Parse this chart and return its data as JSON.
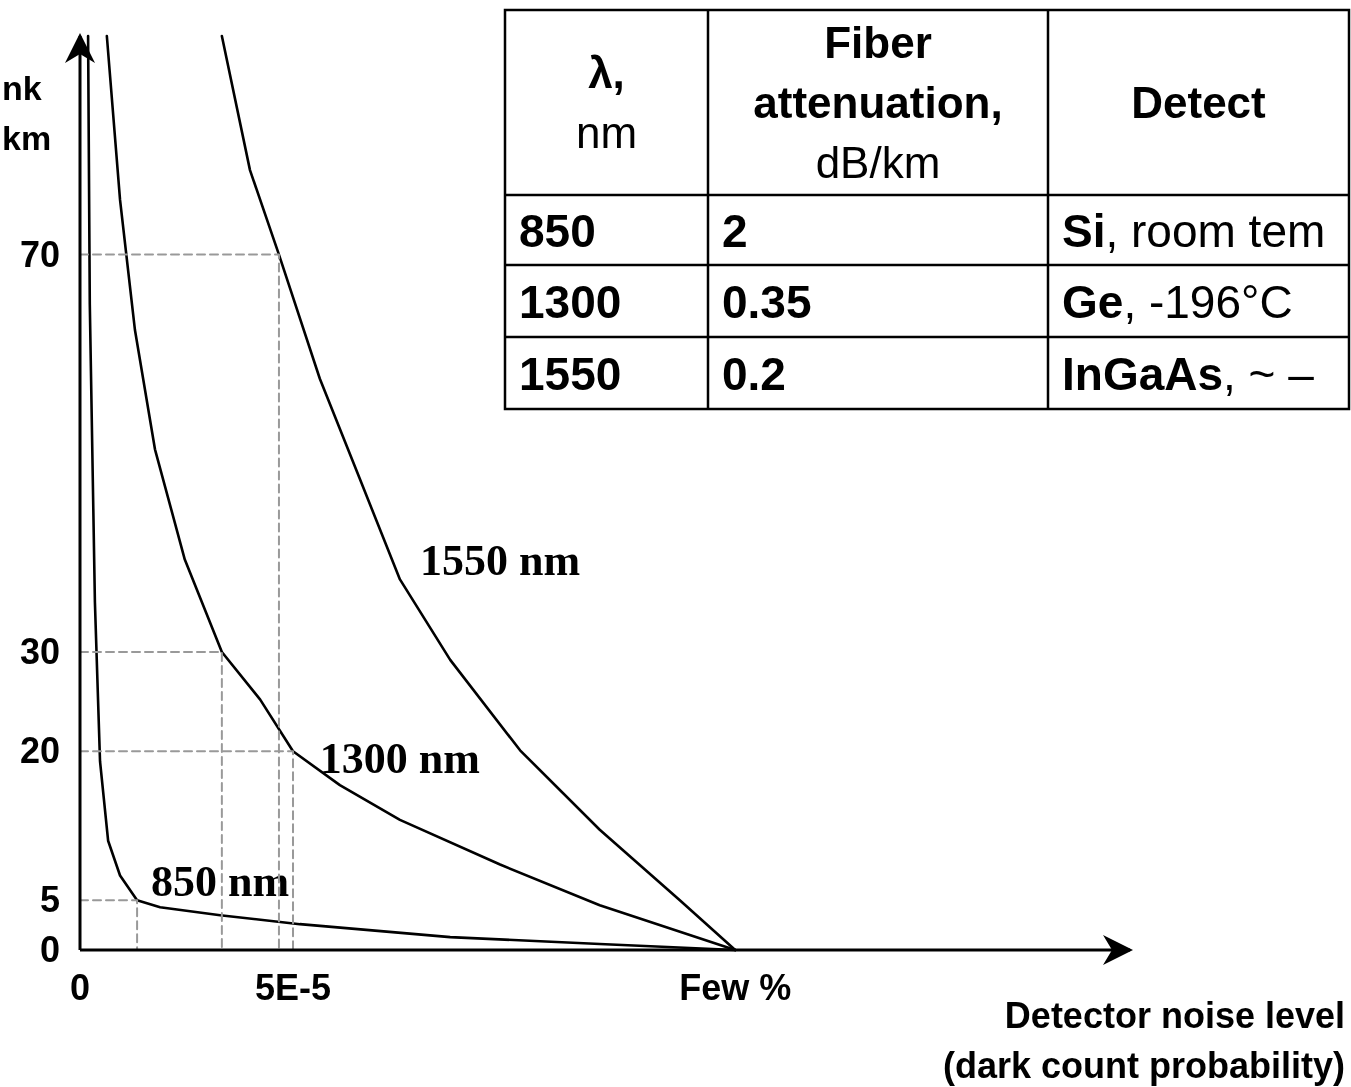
{
  "chart_data": [
    {
      "type": "line",
      "xlabel": "Detector noise level (dark count probability)",
      "ylabel": "nk km",
      "xlim": [
        0,
        0.000246
      ],
      "ylim": [
        0,
        92
      ],
      "xticks": [
        0,
        {
          "value": 5e-05,
          "label": "5E-5"
        },
        {
          "value": 0.0001538,
          "label": "Few %"
        }
      ],
      "yticks": [
        0,
        5,
        20,
        30,
        70
      ],
      "grid": false,
      "marker": "none",
      "series": [
        {
          "name": "850 nm",
          "color": "#000000",
          "x": [
            1.9e-06,
            2.3e-06,
            3.5e-06,
            4.7e-06,
            6.6e-06,
            9.4e-06,
            1.34e-05,
            1.88e-05,
            3.29e-05,
            5.16e-05,
            8.69e-05,
            0.000122,
            0.0001538
          ],
          "values": [
            92,
            65,
            35,
            19,
            11,
            7.5,
            5,
            4.3,
            3.5,
            2.6,
            1.3,
            0.6,
            0
          ]
        },
        {
          "name": "1300 nm",
          "color": "#000000",
          "x": [
            6.3e-06,
            9.4e-06,
            1.29e-05,
            1.76e-05,
            2.46e-05,
            3.33e-05,
            4.23e-05,
            5e-05,
            6.1e-05,
            7.51e-05,
            9.86e-05,
            0.000122,
            0.0001538
          ],
          "values": [
            92,
            75.5,
            62.4,
            50.4,
            39.3,
            30,
            25.2,
            20,
            16.6,
            13.1,
            8.6,
            4.5,
            0
          ]
        },
        {
          "name": "1550 nm",
          "color": "#000000",
          "x": [
            3.33e-05,
            3.99e-05,
            4.67e-05,
            5.63e-05,
            6.57e-05,
            7.51e-05,
            8.69e-05,
            0.0001033,
            0.000122,
            0.0001408,
            0.0001538
          ],
          "values": [
            92,
            78.5,
            70,
            57.5,
            47.4,
            37.3,
            29.2,
            20.1,
            12.1,
            5,
            0
          ]
        },
        {
          "color": "#999999",
          "line_style": "dashed",
          "x": [
            0,
            1.34e-05,
            1.34e-05
          ],
          "values": [
            5,
            5,
            0
          ]
        },
        {
          "color": "#999999",
          "line_style": "dashed",
          "x": [
            0,
            5e-05,
            5e-05
          ],
          "values": [
            20,
            20,
            0
          ]
        },
        {
          "color": "#999999",
          "line_style": "dashed",
          "x": [
            0,
            3.33e-05,
            3.33e-05
          ],
          "values": [
            30,
            30,
            0
          ]
        },
        {
          "color": "#999999",
          "line_style": "dashed",
          "x": [
            0,
            4.67e-05,
            4.67e-05
          ],
          "values": [
            70,
            70,
            0
          ]
        }
      ]
    },
    {
      "type": "other",
      "annotations": [
        "λ, nm",
        "Fiber attenuation, dB/km",
        "Detect",
        "850",
        "2",
        "Si, room tem",
        "1300",
        "0.35",
        "Ge, -196°C",
        "1550",
        "0.2",
        "InGaAs, ~ –"
      ]
    }
  ]
}
